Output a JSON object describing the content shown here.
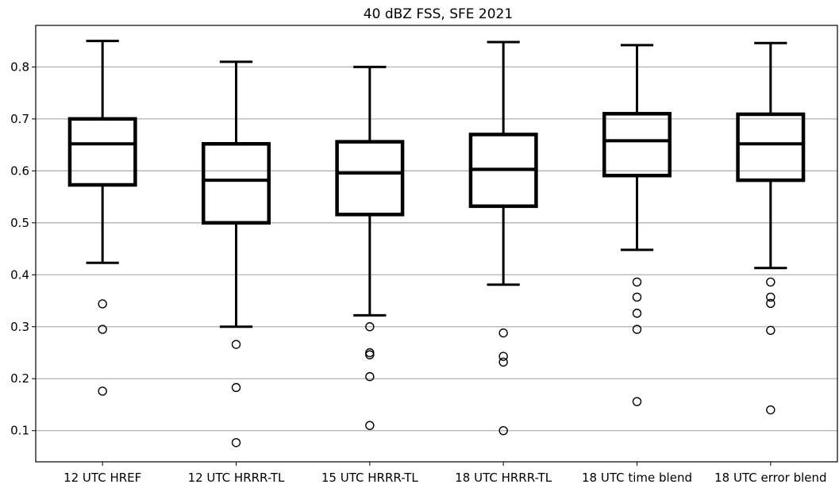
{
  "chart_data": {
    "type": "box",
    "title": "40 dBZ FSS, SFE 2021",
    "xlabel": "",
    "ylabel": "",
    "ylim": [
      0.04,
      0.88
    ],
    "yticks": [
      "0.1",
      "0.2",
      "0.3",
      "0.4",
      "0.5",
      "0.6",
      "0.7",
      "0.8"
    ],
    "grid": "horizontal",
    "colors": {
      "box": "#000000",
      "grid": "#b0b0b0",
      "background": "#ffffff"
    },
    "categories": [
      "12 UTC HREF",
      "12 UTC HRRR-TL",
      "15 UTC HRRR-TL",
      "18 UTC HRRR-TL",
      "18 UTC time blend",
      "18 UTC error blend"
    ],
    "boxes": [
      {
        "whisker_low": 0.423,
        "q1": 0.573,
        "median": 0.652,
        "q3": 0.7,
        "whisker_high": 0.85,
        "outliers": [
          0.344,
          0.295,
          0.176
        ]
      },
      {
        "whisker_low": 0.3,
        "q1": 0.5,
        "median": 0.582,
        "q3": 0.652,
        "whisker_high": 0.81,
        "outliers": [
          0.266,
          0.183,
          0.077
        ]
      },
      {
        "whisker_low": 0.322,
        "q1": 0.516,
        "median": 0.596,
        "q3": 0.656,
        "whisker_high": 0.8,
        "outliers": [
          0.3,
          0.25,
          0.246,
          0.204,
          0.11
        ]
      },
      {
        "whisker_low": 0.381,
        "q1": 0.532,
        "median": 0.603,
        "q3": 0.67,
        "whisker_high": 0.848,
        "outliers": [
          0.288,
          0.243,
          0.232,
          0.1
        ]
      },
      {
        "whisker_low": 0.448,
        "q1": 0.591,
        "median": 0.658,
        "q3": 0.71,
        "whisker_high": 0.842,
        "outliers": [
          0.386,
          0.357,
          0.326,
          0.295,
          0.156
        ]
      },
      {
        "whisker_low": 0.413,
        "q1": 0.582,
        "median": 0.652,
        "q3": 0.709,
        "whisker_high": 0.846,
        "outliers": [
          0.386,
          0.357,
          0.345,
          0.293,
          0.14
        ]
      }
    ]
  }
}
